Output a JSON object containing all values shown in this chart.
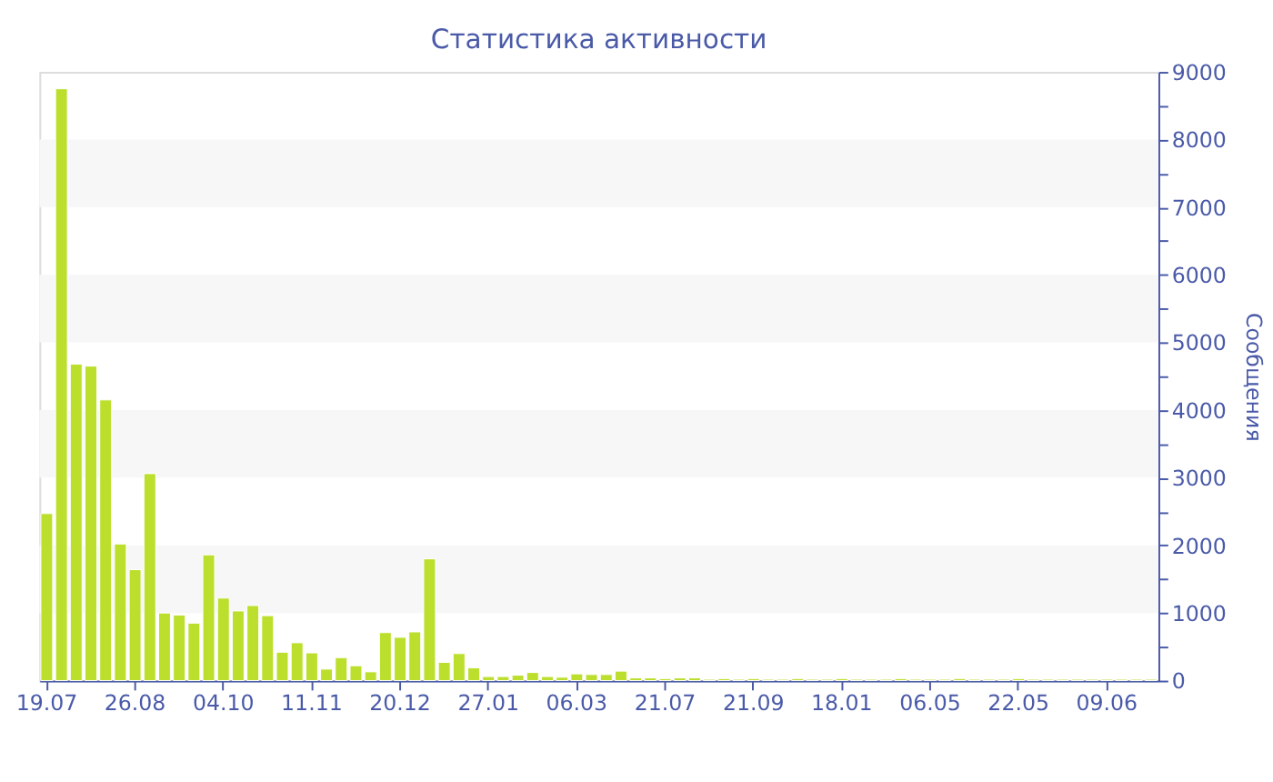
{
  "chart_data": {
    "type": "bar",
    "title": "Статистика активности",
    "ylabel": "Сообщения",
    "categories": [
      "19.07",
      null,
      null,
      null,
      null,
      null,
      "26.08",
      null,
      null,
      null,
      null,
      null,
      "04.10",
      null,
      null,
      null,
      null,
      null,
      "11.11",
      null,
      null,
      null,
      null,
      null,
      "20.12",
      null,
      null,
      null,
      null,
      null,
      "27.01",
      null,
      null,
      null,
      null,
      null,
      "06.03",
      null,
      null,
      null,
      null,
      null,
      "21.07",
      null,
      null,
      null,
      null,
      null,
      "21.09",
      null,
      null,
      null,
      null,
      null,
      "18.01",
      null,
      null,
      null,
      null,
      null,
      "06.05",
      null,
      null,
      null,
      null,
      null,
      "22.05",
      null,
      null,
      null,
      null,
      null,
      "09.06",
      null,
      null,
      null
    ],
    "values": [
      2470,
      8750,
      4680,
      4650,
      4150,
      2020,
      1640,
      3060,
      1000,
      970,
      850,
      1860,
      1220,
      1030,
      1110,
      960,
      420,
      560,
      410,
      170,
      340,
      220,
      130,
      710,
      640,
      720,
      1800,
      270,
      400,
      190,
      60,
      60,
      80,
      120,
      60,
      50,
      100,
      90,
      90,
      140,
      40,
      40,
      30,
      40,
      40,
      20,
      30,
      20,
      30,
      20,
      20,
      30,
      20,
      20,
      30,
      20,
      20,
      20,
      30,
      20,
      20,
      20,
      30,
      20,
      20,
      20,
      30,
      20,
      20,
      20,
      20,
      20,
      20,
      20,
      20,
      20
    ],
    "color": "#bbdf2c",
    "ylim": [
      0,
      9000
    ],
    "yticks": [
      0,
      {
        "value": 500,
        "label": null
      },
      1000,
      {
        "value": 1500,
        "label": null
      },
      2000,
      {
        "value": 2500,
        "label": null
      },
      3000,
      {
        "value": 3500,
        "label": null
      },
      4000,
      {
        "value": 4500,
        "label": null
      },
      5000,
      {
        "value": 5500,
        "label": null
      },
      6000,
      {
        "value": 6500,
        "label": null
      },
      7000,
      {
        "value": 7500,
        "label": null
      },
      8000,
      {
        "value": 8500,
        "label": null
      },
      9000
    ],
    "bands": [
      {
        "axis": "y",
        "from": 1000,
        "to": 2000,
        "color": "#f7f7f7"
      },
      {
        "axis": "y",
        "from": 3000,
        "to": 4000,
        "color": "#f7f7f7"
      },
      {
        "axis": "y",
        "from": 5000,
        "to": 6000,
        "color": "#f7f7f7"
      },
      {
        "axis": "y",
        "from": 7000,
        "to": 8000,
        "color": "#f7f7f7"
      }
    ],
    "grid": false
  }
}
